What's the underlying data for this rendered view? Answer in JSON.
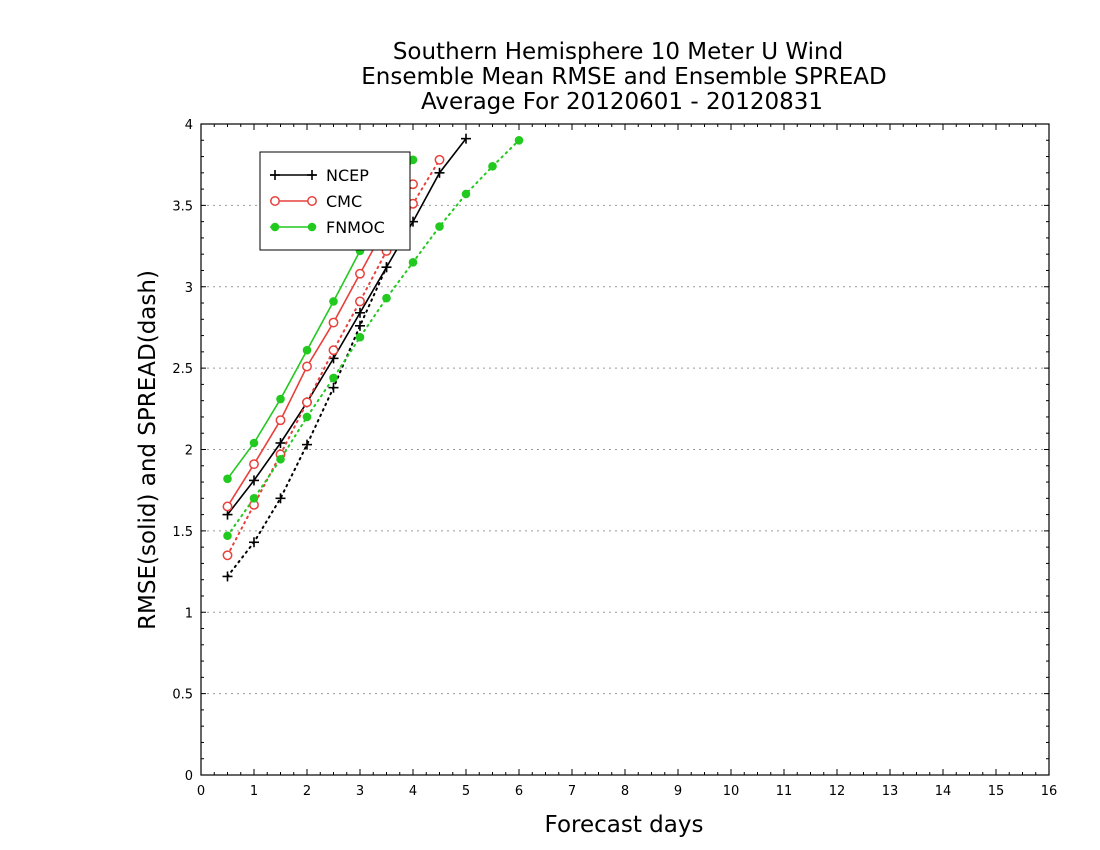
{
  "chart_data": {
    "type": "line",
    "title_lines": [
      "Southern Hemisphere 10 Meter U Wind",
      "Ensemble Mean RMSE and Ensemble SPREAD",
      "Average For 20120601 - 20120831"
    ],
    "xlabel": "Forecast days",
    "ylabel": "RMSE(solid) and SPREAD(dash)",
    "xlim": [
      0,
      16
    ],
    "ylim": [
      0,
      4
    ],
    "x_ticks": [
      "0",
      "1",
      "2",
      "3",
      "4",
      "5",
      "6",
      "7",
      "8",
      "9",
      "10",
      "11",
      "12",
      "13",
      "14",
      "15",
      "16"
    ],
    "y_ticks": [
      "0",
      "0.5",
      "1",
      "1.5",
      "2",
      "2.5",
      "3",
      "3.5",
      "4"
    ],
    "grid": "horizontal dotted",
    "legend_position": "top-left",
    "colors": {
      "NCEP": "#000000",
      "CMC": "#e8413c",
      "FNMOC": "#22c91e"
    },
    "series": [
      {
        "name": "NCEP",
        "metric": "RMSE",
        "style": "solid",
        "marker": "plus",
        "x": [
          0.5,
          1,
          1.5,
          2,
          2.5,
          3,
          3.5,
          4,
          4.5,
          5
        ],
        "values": [
          1.6,
          1.81,
          2.04,
          2.29,
          2.56,
          2.84,
          3.12,
          3.4,
          3.7,
          3.91
        ]
      },
      {
        "name": "NCEP",
        "metric": "SPREAD",
        "style": "dotted",
        "marker": "plus",
        "x": [
          0.5,
          1,
          1.5,
          2,
          2.5,
          3,
          3.5
        ],
        "values": [
          1.22,
          1.43,
          1.7,
          2.03,
          2.38,
          2.76,
          3.12
        ]
      },
      {
        "name": "CMC",
        "metric": "RMSE",
        "style": "solid",
        "marker": "circle",
        "x": [
          0.5,
          1,
          1.5,
          2,
          2.5,
          3,
          3.5,
          4
        ],
        "values": [
          1.65,
          1.91,
          2.18,
          2.51,
          2.78,
          3.08,
          3.38,
          3.63
        ]
      },
      {
        "name": "CMC",
        "metric": "SPREAD",
        "style": "dotted",
        "marker": "circle",
        "x": [
          0.5,
          1,
          1.5,
          2,
          2.5,
          3,
          3.5,
          4,
          4.5
        ],
        "values": [
          1.35,
          1.66,
          1.97,
          2.29,
          2.61,
          2.91,
          3.22,
          3.51,
          3.78
        ]
      },
      {
        "name": "FNMOC",
        "metric": "RMSE",
        "style": "solid",
        "marker": "dot",
        "x": [
          0.5,
          1,
          1.5,
          2,
          2.5,
          3,
          3.5,
          4
        ],
        "values": [
          1.82,
          2.04,
          2.31,
          2.61,
          2.91,
          3.22,
          3.52,
          3.78
        ]
      },
      {
        "name": "FNMOC",
        "metric": "SPREAD",
        "style": "dotted",
        "marker": "dot",
        "x": [
          0.5,
          1,
          1.5,
          2,
          2.5,
          3,
          3.5,
          4,
          4.5,
          5,
          5.5,
          6
        ],
        "values": [
          1.47,
          1.7,
          1.94,
          2.2,
          2.44,
          2.69,
          2.93,
          3.15,
          3.37,
          3.57,
          3.74,
          3.9
        ]
      }
    ],
    "legend": [
      {
        "name": "NCEP",
        "marker": "plus"
      },
      {
        "name": "CMC",
        "marker": "circle"
      },
      {
        "name": "FNMOC",
        "marker": "dot"
      }
    ]
  }
}
